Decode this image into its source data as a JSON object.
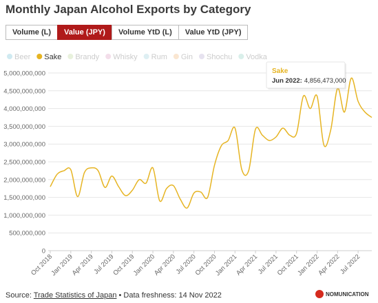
{
  "chart_data": {
    "type": "line",
    "title": "Monthly Japan Alcohol Exports by Category",
    "tabs": {
      "items": [
        "Volume (L)",
        "Value (JPY)",
        "Volume YtD (L)",
        "Value YtD (JPY)"
      ],
      "active": 1
    },
    "legend_items": [
      {
        "name": "Beer",
        "color": "#a9d8e6",
        "visible": false
      },
      {
        "name": "Sake",
        "color": "#e6b422",
        "visible": true
      },
      {
        "name": "Brandy",
        "color": "#d6e6bf",
        "visible": false
      },
      {
        "name": "Whisky",
        "color": "#e9c2d8",
        "visible": false
      },
      {
        "name": "Rum",
        "color": "#c2e2ea",
        "visible": false
      },
      {
        "name": "Gin",
        "color": "#f5d2ab",
        "visible": false
      },
      {
        "name": "Shochu",
        "color": "#d2cae2",
        "visible": false
      },
      {
        "name": "Vodka",
        "color": "#b9e2d9",
        "visible": false
      }
    ],
    "categories": [
      "Oct 2018",
      null,
      null,
      "Jan 2019",
      null,
      null,
      "Apr 2019",
      null,
      null,
      "Jul 2019",
      null,
      null,
      "Oct 2019",
      null,
      null,
      "Jan 2020",
      null,
      null,
      "Apr 2020",
      null,
      null,
      "Jul 2020",
      null,
      null,
      "Oct 2020",
      null,
      null,
      "Jan 2021",
      null,
      null,
      "Apr 2021",
      null,
      null,
      "Jul 2021",
      null,
      null,
      "Oct 2021",
      null,
      null,
      "Jan 2022",
      null,
      null,
      "Apr 2022",
      null,
      null,
      "Jul 2022",
      null,
      null
    ],
    "series": [
      {
        "name": "Sake",
        "color": "#e6b422",
        "values": [
          1800000000,
          2150000000,
          2250000000,
          2280000000,
          1520000000,
          2200000000,
          2330000000,
          2250000000,
          1780000000,
          2100000000,
          1800000000,
          1550000000,
          1700000000,
          2000000000,
          1900000000,
          2330000000,
          1400000000,
          1750000000,
          1830000000,
          1450000000,
          1200000000,
          1620000000,
          1650000000,
          1500000000,
          2400000000,
          2950000000,
          3100000000,
          3450000000,
          2280000000,
          2250000000,
          3420000000,
          3250000000,
          3100000000,
          3200000000,
          3450000000,
          3250000000,
          3300000000,
          4350000000,
          4000000000,
          4350000000,
          2970000000,
          3400000000,
          4570000000,
          3900000000,
          4856473000,
          4200000000,
          3900000000,
          3750000000
        ]
      }
    ],
    "ylim": [
      0,
      5000000000
    ],
    "yticks": [
      0,
      {
        "value": 500000000,
        "label": "500,000,000"
      },
      {
        "value": 1000000000,
        "label": "1,000,000,000"
      },
      {
        "value": 1500000000,
        "label": "1,500,000,000"
      },
      {
        "value": 2000000000,
        "label": "2,000,000,000"
      },
      {
        "value": 2500000000,
        "label": "2,500,000,000"
      },
      {
        "value": 3000000000,
        "label": "3,000,000,000"
      },
      {
        "value": 3500000000,
        "label": "3,500,000,000"
      },
      {
        "value": 4000000000,
        "label": "4,000,000,000"
      },
      {
        "value": 4500000000,
        "label": "4,500,000,000"
      },
      {
        "value": 5000000000,
        "label": "5,000,000,000"
      }
    ],
    "grid": true,
    "tooltip": {
      "series": "Sake",
      "label": "Jun 2022:",
      "value_label": "4,856,473,000"
    }
  },
  "footer": {
    "prefix": "Source:",
    "link": "Trade Statistics of Japan",
    "suffix": "• Data freshness: 14 Nov 2022"
  },
  "logo": "NOMUNICATION"
}
